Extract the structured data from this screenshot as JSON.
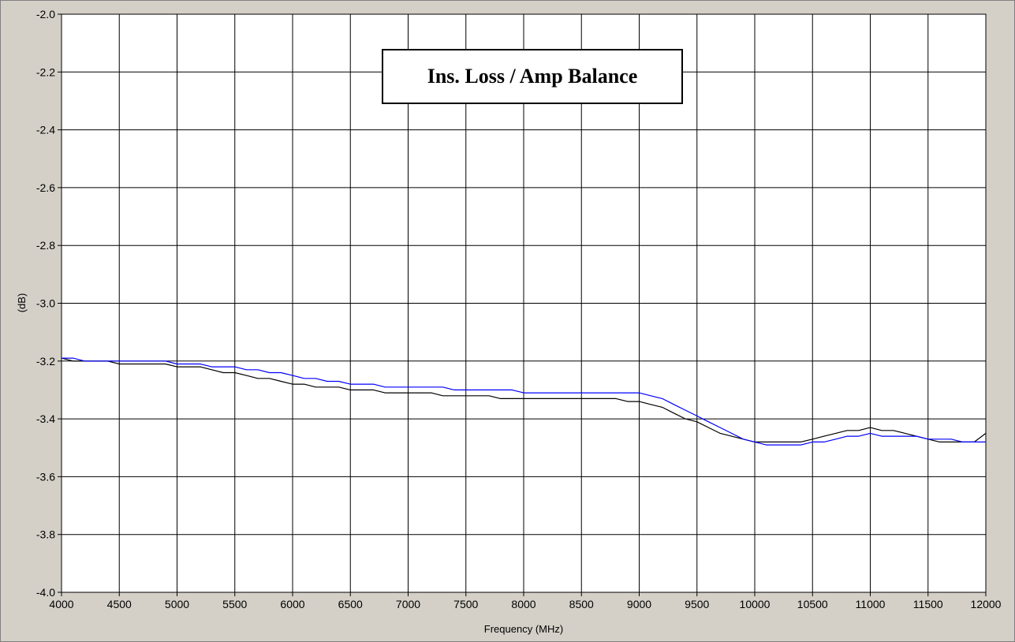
{
  "chart_data": {
    "type": "line",
    "title": "Ins. Loss / Amp Balance",
    "xlabel": "Frequency (MHz)",
    "ylabel": "(dB)",
    "xlim": [
      4000,
      12000
    ],
    "ylim": [
      -4.0,
      -2.0
    ],
    "x_ticks": [
      "4000",
      "4500",
      "5000",
      "5500",
      "6000",
      "6500",
      "7000",
      "7500",
      "8000",
      "8500",
      "9000",
      "9500",
      "10000",
      "10500",
      "11000",
      "11500",
      "12000"
    ],
    "y_ticks": [
      "-2.0",
      "-2.2",
      "-2.4",
      "-2.6",
      "-2.8",
      "-3.0",
      "-3.2",
      "-3.4",
      "-3.6",
      "-3.8",
      "-4.0"
    ],
    "grid": true,
    "series": [
      {
        "color": "#000000",
        "points": [
          [
            4000,
            -3.19
          ],
          [
            4100,
            -3.2
          ],
          [
            4200,
            -3.2
          ],
          [
            4300,
            -3.2
          ],
          [
            4400,
            -3.2
          ],
          [
            4500,
            -3.21
          ],
          [
            4600,
            -3.21
          ],
          [
            4700,
            -3.21
          ],
          [
            4800,
            -3.21
          ],
          [
            4900,
            -3.21
          ],
          [
            5000,
            -3.22
          ],
          [
            5100,
            -3.22
          ],
          [
            5200,
            -3.22
          ],
          [
            5300,
            -3.23
          ],
          [
            5400,
            -3.24
          ],
          [
            5500,
            -3.24
          ],
          [
            5600,
            -3.25
          ],
          [
            5700,
            -3.26
          ],
          [
            5800,
            -3.26
          ],
          [
            5900,
            -3.27
          ],
          [
            6000,
            -3.28
          ],
          [
            6100,
            -3.28
          ],
          [
            6200,
            -3.29
          ],
          [
            6300,
            -3.29
          ],
          [
            6400,
            -3.29
          ],
          [
            6500,
            -3.3
          ],
          [
            6600,
            -3.3
          ],
          [
            6700,
            -3.3
          ],
          [
            6800,
            -3.31
          ],
          [
            6900,
            -3.31
          ],
          [
            7000,
            -3.31
          ],
          [
            7100,
            -3.31
          ],
          [
            7200,
            -3.31
          ],
          [
            7300,
            -3.32
          ],
          [
            7400,
            -3.32
          ],
          [
            7500,
            -3.32
          ],
          [
            7600,
            -3.32
          ],
          [
            7700,
            -3.32
          ],
          [
            7800,
            -3.33
          ],
          [
            7900,
            -3.33
          ],
          [
            8000,
            -3.33
          ],
          [
            8100,
            -3.33
          ],
          [
            8200,
            -3.33
          ],
          [
            8300,
            -3.33
          ],
          [
            8400,
            -3.33
          ],
          [
            8500,
            -3.33
          ],
          [
            8600,
            -3.33
          ],
          [
            8700,
            -3.33
          ],
          [
            8800,
            -3.33
          ],
          [
            8900,
            -3.34
          ],
          [
            9000,
            -3.34
          ],
          [
            9100,
            -3.35
          ],
          [
            9200,
            -3.36
          ],
          [
            9300,
            -3.38
          ],
          [
            9400,
            -3.4
          ],
          [
            9500,
            -3.41
          ],
          [
            9600,
            -3.43
          ],
          [
            9700,
            -3.45
          ],
          [
            9800,
            -3.46
          ],
          [
            9900,
            -3.47
          ],
          [
            10000,
            -3.48
          ],
          [
            10100,
            -3.48
          ],
          [
            10200,
            -3.48
          ],
          [
            10300,
            -3.48
          ],
          [
            10400,
            -3.48
          ],
          [
            10500,
            -3.47
          ],
          [
            10600,
            -3.46
          ],
          [
            10700,
            -3.45
          ],
          [
            10800,
            -3.44
          ],
          [
            10900,
            -3.44
          ],
          [
            11000,
            -3.43
          ],
          [
            11100,
            -3.44
          ],
          [
            11200,
            -3.44
          ],
          [
            11300,
            -3.45
          ],
          [
            11400,
            -3.46
          ],
          [
            11500,
            -3.47
          ],
          [
            11600,
            -3.48
          ],
          [
            11700,
            -3.48
          ],
          [
            11800,
            -3.48
          ],
          [
            11900,
            -3.48
          ],
          [
            12000,
            -3.45
          ]
        ]
      },
      {
        "color": "#0000ff",
        "points": [
          [
            4000,
            -3.19
          ],
          [
            4100,
            -3.19
          ],
          [
            4200,
            -3.2
          ],
          [
            4300,
            -3.2
          ],
          [
            4400,
            -3.2
          ],
          [
            4500,
            -3.2
          ],
          [
            4600,
            -3.2
          ],
          [
            4700,
            -3.2
          ],
          [
            4800,
            -3.2
          ],
          [
            4900,
            -3.2
          ],
          [
            5000,
            -3.21
          ],
          [
            5100,
            -3.21
          ],
          [
            5200,
            -3.21
          ],
          [
            5300,
            -3.22
          ],
          [
            5400,
            -3.22
          ],
          [
            5500,
            -3.22
          ],
          [
            5600,
            -3.23
          ],
          [
            5700,
            -3.23
          ],
          [
            5800,
            -3.24
          ],
          [
            5900,
            -3.24
          ],
          [
            6000,
            -3.25
          ],
          [
            6100,
            -3.26
          ],
          [
            6200,
            -3.26
          ],
          [
            6300,
            -3.27
          ],
          [
            6400,
            -3.27
          ],
          [
            6500,
            -3.28
          ],
          [
            6600,
            -3.28
          ],
          [
            6700,
            -3.28
          ],
          [
            6800,
            -3.29
          ],
          [
            6900,
            -3.29
          ],
          [
            7000,
            -3.29
          ],
          [
            7100,
            -3.29
          ],
          [
            7200,
            -3.29
          ],
          [
            7300,
            -3.29
          ],
          [
            7400,
            -3.3
          ],
          [
            7500,
            -3.3
          ],
          [
            7600,
            -3.3
          ],
          [
            7700,
            -3.3
          ],
          [
            7800,
            -3.3
          ],
          [
            7900,
            -3.3
          ],
          [
            8000,
            -3.31
          ],
          [
            8100,
            -3.31
          ],
          [
            8200,
            -3.31
          ],
          [
            8300,
            -3.31
          ],
          [
            8400,
            -3.31
          ],
          [
            8500,
            -3.31
          ],
          [
            8600,
            -3.31
          ],
          [
            8700,
            -3.31
          ],
          [
            8800,
            -3.31
          ],
          [
            8900,
            -3.31
          ],
          [
            9000,
            -3.31
          ],
          [
            9100,
            -3.32
          ],
          [
            9200,
            -3.33
          ],
          [
            9300,
            -3.35
          ],
          [
            9400,
            -3.37
          ],
          [
            9500,
            -3.39
          ],
          [
            9600,
            -3.41
          ],
          [
            9700,
            -3.43
          ],
          [
            9800,
            -3.45
          ],
          [
            9900,
            -3.47
          ],
          [
            10000,
            -3.48
          ],
          [
            10100,
            -3.49
          ],
          [
            10200,
            -3.49
          ],
          [
            10300,
            -3.49
          ],
          [
            10400,
            -3.49
          ],
          [
            10500,
            -3.48
          ],
          [
            10600,
            -3.48
          ],
          [
            10700,
            -3.47
          ],
          [
            10800,
            -3.46
          ],
          [
            10900,
            -3.46
          ],
          [
            11000,
            -3.45
          ],
          [
            11100,
            -3.46
          ],
          [
            11200,
            -3.46
          ],
          [
            11300,
            -3.46
          ],
          [
            11400,
            -3.46
          ],
          [
            11500,
            -3.47
          ],
          [
            11600,
            -3.47
          ],
          [
            11700,
            -3.47
          ],
          [
            11800,
            -3.48
          ],
          [
            11900,
            -3.48
          ],
          [
            12000,
            -3.48
          ]
        ]
      }
    ]
  }
}
